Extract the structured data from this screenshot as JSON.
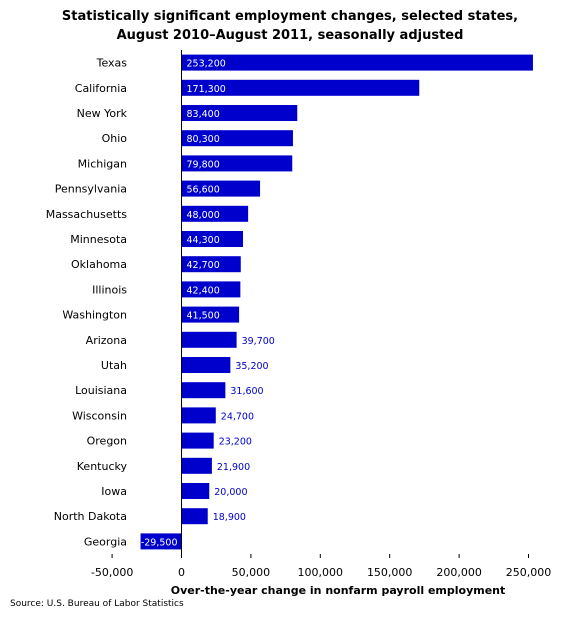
{
  "chart_data": {
    "type": "bar",
    "orientation": "horizontal",
    "title": [
      "Statistically significant employment changes, selected states,",
      "August 2010–August 2011, seasonally adjusted"
    ],
    "xlabel": "Over-the-year change in nonfarm payroll employment",
    "ylabel": "",
    "xlim": [
      -50000,
      250000
    ],
    "ticks": [
      -50000,
      0,
      50000,
      100000,
      150000,
      200000,
      250000
    ],
    "tick_labels": [
      "-50,000",
      "0",
      "50,000",
      "100,000",
      "150,000",
      "200,000",
      "250,000"
    ],
    "categories": [
      "Texas",
      "California",
      "New York",
      "Ohio",
      "Michigan",
      "Pennsylvania",
      "Massachusetts",
      "Minnesota",
      "Oklahoma",
      "Illinois",
      "Washington",
      "Arizona",
      "Utah",
      "Louisiana",
      "Wisconsin",
      "Oregon",
      "Kentucky",
      "Iowa",
      "North Dakota",
      "Georgia"
    ],
    "values": [
      253200,
      171300,
      83400,
      80300,
      79800,
      56600,
      48000,
      44300,
      42700,
      42400,
      41500,
      39700,
      35200,
      31600,
      24700,
      23200,
      21900,
      20000,
      18900,
      -29500
    ],
    "data_labels": [
      "253,200",
      "171,300",
      "83,400",
      "80,300",
      "79,800",
      "56,600",
      "48,000",
      "44,300",
      "42,700",
      "42,400",
      "41,500",
      "39,700",
      "35,200",
      "31,600",
      "24,700",
      "23,200",
      "21,900",
      "20,000",
      "18,900",
      "-29,500"
    ],
    "bar_color": "#0000CC",
    "grid": false,
    "legend": "none"
  },
  "source": "Source: U.S. Bureau of Labor Statistics"
}
